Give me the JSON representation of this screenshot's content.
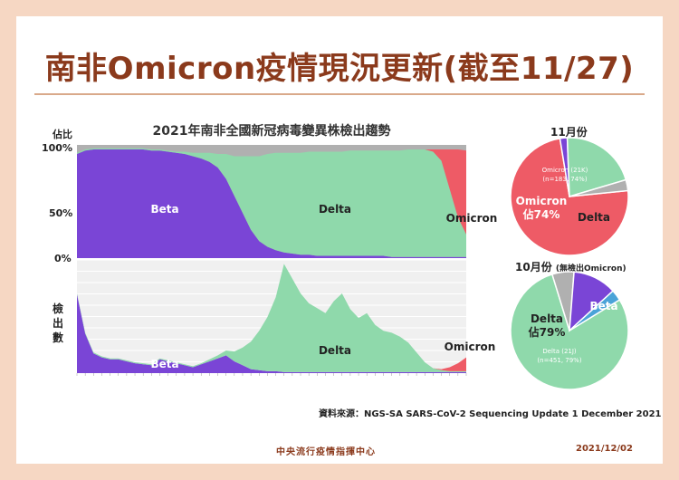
{
  "page": {
    "title": "南非Omicron疫情現況更新(截至11/27)",
    "source": "資料來源：NGS-SA SARS-CoV-2 Sequencing Update 1 December 2021",
    "org": "中央流行疫情指揮中心",
    "date": "2021/12/02",
    "colors": {
      "beta": "#7a45d6",
      "delta": "#8fd9ab",
      "omicron": "#ee5b66",
      "other": "#b0b0b0",
      "title": "#8b3a1c"
    }
  },
  "chart_data": [
    {
      "type": "area",
      "title": "2021年南非全國新冠病毒變異株檢出趨勢",
      "ylabel": "佔比",
      "ytick_labels": [
        "100%",
        "50%",
        "0%"
      ],
      "ylim": [
        0,
        100
      ],
      "series": [
        {
          "name": "Beta",
          "values": [
            92,
            95,
            96,
            96,
            96,
            96,
            96,
            96,
            96,
            95,
            95,
            94,
            93,
            92,
            90,
            88,
            85,
            80,
            70,
            55,
            40,
            25,
            15,
            10,
            7,
            5,
            4,
            3,
            3,
            2,
            2,
            2,
            2,
            2,
            2,
            2,
            2,
            2,
            1,
            1,
            1,
            1,
            1,
            1,
            1,
            1,
            1,
            1
          ]
        },
        {
          "name": "Delta",
          "values": [
            1,
            1,
            1,
            1,
            1,
            1,
            1,
            1,
            1,
            1,
            1,
            1,
            1,
            2,
            3,
            5,
            8,
            12,
            22,
            35,
            50,
            65,
            75,
            82,
            86,
            88,
            89,
            90,
            91,
            92,
            92,
            92,
            92,
            93,
            93,
            93,
            93,
            93,
            94,
            94,
            95,
            95,
            95,
            93,
            85,
            60,
            35,
            20
          ]
        },
        {
          "name": "Omicron",
          "values": [
            0,
            0,
            0,
            0,
            0,
            0,
            0,
            0,
            0,
            0,
            0,
            0,
            0,
            0,
            0,
            0,
            0,
            0,
            0,
            0,
            0,
            0,
            0,
            0,
            0,
            0,
            0,
            0,
            0,
            0,
            0,
            0,
            0,
            0,
            0,
            0,
            0,
            0,
            0,
            0,
            0,
            0,
            0,
            2,
            10,
            35,
            60,
            74
          ]
        }
      ],
      "annotations": [
        "Beta",
        "Delta",
        "Omicron"
      ]
    },
    {
      "type": "area",
      "ylabel": "檢出數",
      "series": [
        {
          "name": "Beta",
          "values": [
            80,
            40,
            20,
            16,
            14,
            14,
            12,
            10,
            9,
            8,
            14,
            12,
            10,
            8,
            6,
            9,
            12,
            15,
            18,
            12,
            8,
            4,
            3,
            2,
            2,
            1,
            1,
            1,
            1,
            1,
            1,
            1,
            1,
            1,
            1,
            1,
            1,
            1,
            1,
            1,
            1,
            1,
            1,
            1,
            1,
            1,
            1,
            1
          ]
        },
        {
          "name": "Delta",
          "values": [
            1,
            1,
            1,
            1,
            1,
            1,
            1,
            1,
            1,
            1,
            1,
            1,
            1,
            1,
            1,
            1,
            2,
            3,
            5,
            10,
            18,
            28,
            40,
            55,
            75,
            110,
            95,
            80,
            70,
            65,
            60,
            72,
            80,
            64,
            55,
            60,
            48,
            42,
            40,
            36,
            30,
            20,
            10,
            4,
            2,
            1,
            1,
            1
          ]
        },
        {
          "name": "Omicron",
          "values": [
            0,
            0,
            0,
            0,
            0,
            0,
            0,
            0,
            0,
            0,
            0,
            0,
            0,
            0,
            0,
            0,
            0,
            0,
            0,
            0,
            0,
            0,
            0,
            0,
            0,
            0,
            0,
            0,
            0,
            0,
            0,
            0,
            0,
            0,
            0,
            0,
            0,
            0,
            0,
            0,
            0,
            0,
            0,
            0,
            1,
            4,
            8,
            14
          ]
        }
      ],
      "annotations": [
        "Beta",
        "Delta",
        "Omicron"
      ]
    },
    {
      "type": "pie",
      "title": "11月份",
      "slices": [
        {
          "label": "Omicron",
          "value": 74,
          "detail_name": "Omicron (21K)",
          "detail_n": "(n=183, 74%)",
          "big": "Omicron",
          "big2": "佔74%"
        },
        {
          "label": "Beta",
          "value": 2
        },
        {
          "label": "Delta",
          "value": 21
        },
        {
          "label": "Other",
          "value": 3
        }
      ]
    },
    {
      "type": "pie",
      "title": "10月份",
      "title_note": "(無檢出Omicron)",
      "slices": [
        {
          "label": "Delta",
          "value": 79,
          "detail_name": "Delta (21J)",
          "detail_n": "(n=451, 79%)",
          "big": "Delta",
          "big2": "佔79%"
        },
        {
          "label": "Other",
          "value": 6
        },
        {
          "label": "Beta",
          "value": 12
        },
        {
          "label": "Misc",
          "value": 3
        }
      ]
    }
  ]
}
